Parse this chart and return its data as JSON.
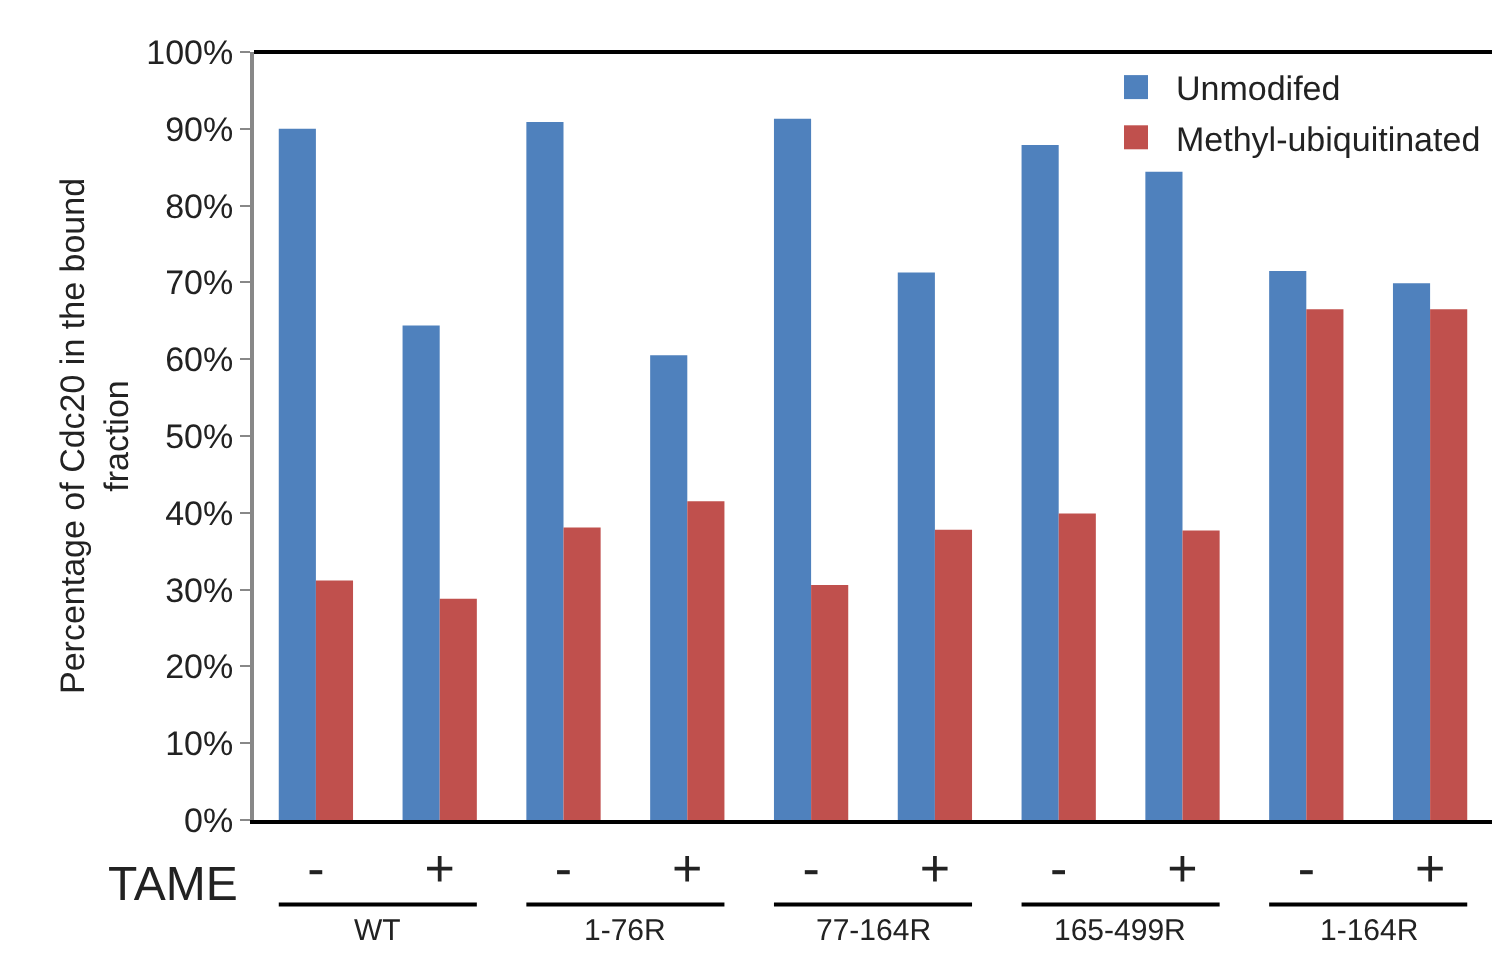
{
  "chart_data": {
    "type": "bar",
    "ylabel": "Percentage of Cdc20 in the bound fraction",
    "categories": [
      "-",
      "+",
      "-",
      "+",
      "-",
      "+",
      "-",
      "+",
      "-",
      "+"
    ],
    "series": [
      {
        "name": "Unmodifed",
        "color": "#4f81bd",
        "values": [
          90,
          64.4,
          90.9,
          60.5,
          91.3,
          71.3,
          87.9,
          84.4,
          71.5,
          69.9
        ]
      },
      {
        "name": "Methyl-ubiquitinated",
        "color": "#c0504d",
        "values": [
          31.2,
          28.8,
          38.1,
          41.5,
          30.6,
          37.8,
          39.9,
          37.7,
          66.5,
          66.5
        ]
      }
    ],
    "ylim": [
      0,
      100
    ],
    "yticks": [
      {
        "value": 0,
        "label": "0%"
      },
      {
        "value": 10,
        "label": "10%"
      },
      {
        "value": 20,
        "label": "20%"
      },
      {
        "value": 30,
        "label": "30%"
      },
      {
        "value": 40,
        "label": "40%"
      },
      {
        "value": 50,
        "label": "50%"
      },
      {
        "value": 60,
        "label": "60%"
      },
      {
        "value": 70,
        "label": "70%"
      },
      {
        "value": 80,
        "label": "80%"
      },
      {
        "value": 90,
        "label": "90%"
      },
      {
        "value": 100,
        "label": "100%"
      }
    ],
    "annotations": [
      "TAME",
      "WT",
      "1-76R",
      "77-164R",
      "165-499R",
      "1-164R"
    ],
    "legend": "top right"
  }
}
